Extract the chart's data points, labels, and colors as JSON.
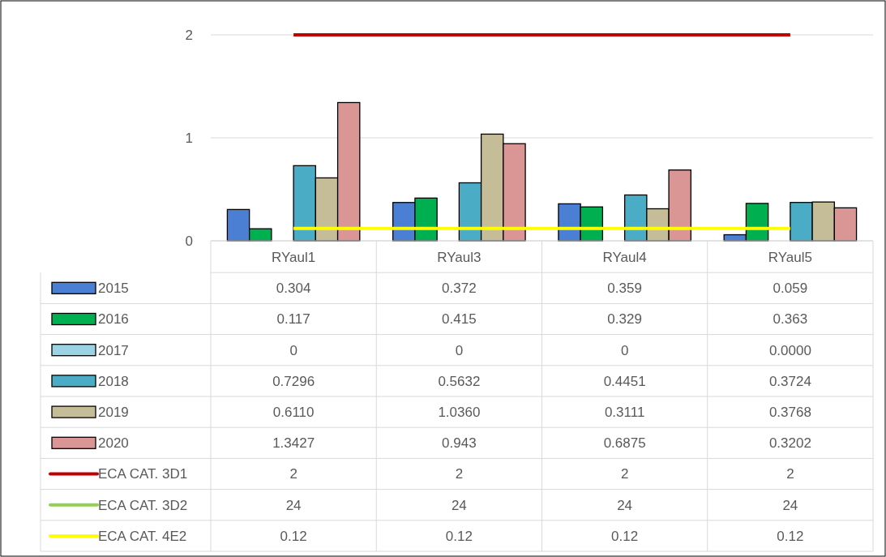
{
  "chart_data": {
    "type": "bar",
    "categories": [
      "RYaul1",
      "RYaul3",
      "RYaul4",
      "RYaul5"
    ],
    "ylim": [
      0,
      2
    ],
    "yticks": [
      0,
      1,
      2
    ],
    "grid": "y",
    "legend": "bottom",
    "data_labels": true,
    "series": [
      {
        "name": "2015",
        "color": "#4a7fd4",
        "values": [
          0.304,
          0.372,
          0.359,
          0.059
        ],
        "value_labels": [
          "0.304",
          "0.372",
          "0.359",
          "0.059"
        ]
      },
      {
        "name": "2016",
        "color": "#00b050",
        "values": [
          0.117,
          0.415,
          0.329,
          0.363
        ],
        "value_labels": [
          "0.117",
          "0.415",
          "0.329",
          "0.363"
        ]
      },
      {
        "name": "2017",
        "color": "#9bd3e4",
        "values": [
          0,
          0,
          0,
          0
        ],
        "value_labels": [
          "0",
          "0",
          "0",
          "0.0000"
        ]
      },
      {
        "name": "2018",
        "color": "#4bacc6",
        "values": [
          0.7296,
          0.5632,
          0.4451,
          0.3724
        ],
        "value_labels": [
          "0.7296",
          "0.5632",
          "0.4451",
          "0.3724"
        ]
      },
      {
        "name": "2019",
        "color": "#c4bd97",
        "values": [
          0.611,
          1.036,
          0.3111,
          0.3768
        ],
        "value_labels": [
          "0.6110",
          "1.0360",
          "0.3111",
          "0.3768"
        ]
      },
      {
        "name": "2020",
        "color": "#da9694",
        "values": [
          1.3427,
          0.943,
          0.6875,
          0.3202
        ],
        "value_labels": [
          "1.3427",
          "0.943",
          "0.6875",
          "0.3202"
        ]
      },
      {
        "name": "ECA CAT. 3D1",
        "type": "line",
        "color": "#c00000",
        "values": [
          2,
          2,
          2,
          2
        ],
        "value_labels": [
          "2",
          "2",
          "2",
          "2"
        ]
      },
      {
        "name": "ECA CAT. 3D2",
        "type": "line",
        "color": "#92d050",
        "values": [
          null,
          null,
          null,
          null
        ],
        "value_labels": [
          "24",
          "24",
          "24",
          "24"
        ]
      },
      {
        "name": "ECA CAT. 4E2",
        "type": "line",
        "color": "#ffff00",
        "values": [
          0.12,
          0.12,
          0.12,
          0.12
        ],
        "value_labels": [
          "0.12",
          "0.12",
          "0.12",
          "0.12"
        ]
      }
    ]
  }
}
